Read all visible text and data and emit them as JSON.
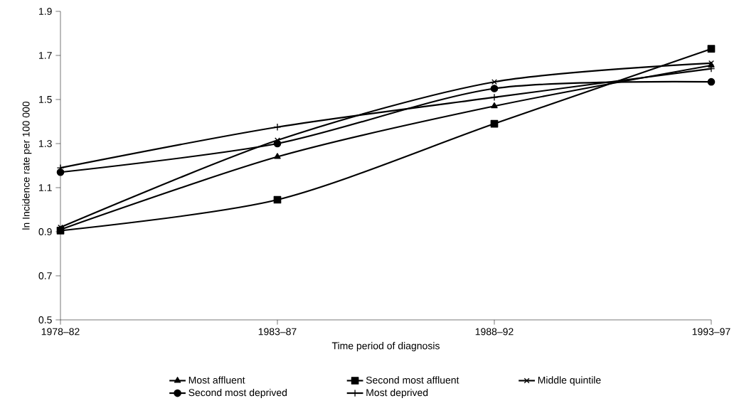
{
  "chart_data": {
    "type": "line",
    "xlabel": "Time period of diagnosis",
    "ylabel": "ln Incidence rate per 100 000",
    "categories": [
      "1978–82",
      "1983–87",
      "1988–92",
      "1993–97"
    ],
    "series": [
      {
        "name": "Most affluent",
        "color": "#000000",
        "marker": "triangle",
        "values": [
          0.91,
          1.24,
          1.47,
          1.655
        ]
      },
      {
        "name": "Second most affluent",
        "color": "#000000",
        "marker": "square",
        "values": [
          0.905,
          1.045,
          1.39,
          1.73
        ]
      },
      {
        "name": "Middle quintile",
        "color": "#000000",
        "marker": "cross",
        "values": [
          0.92,
          1.315,
          1.58,
          1.665
        ]
      },
      {
        "name": "Second most deprived",
        "color": "#000000",
        "marker": "circle",
        "values": [
          1.17,
          1.3,
          1.55,
          1.58
        ]
      },
      {
        "name": "Most deprived",
        "color": "#000000",
        "marker": "plus",
        "values": [
          1.19,
          1.375,
          1.51,
          1.64
        ]
      }
    ],
    "ylim": [
      0.5,
      1.9
    ],
    "yticks": [
      0.5,
      0.7,
      0.9,
      1.1,
      1.3,
      1.5,
      1.7,
      1.9
    ],
    "legend": "bottom",
    "line_style": "solid",
    "grid": false
  }
}
